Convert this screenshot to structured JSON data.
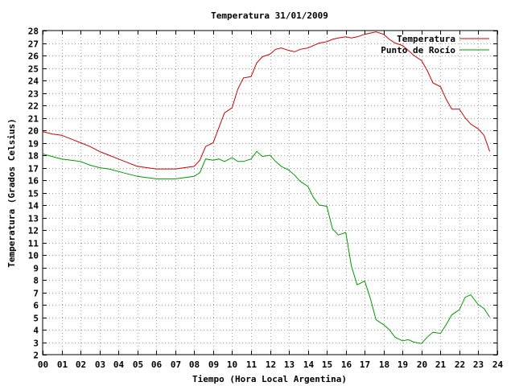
{
  "chart_data": {
    "type": "line",
    "title": "Temperatura 31/01/2009",
    "xlabel": "Tiempo (Hora Local Argentina)",
    "ylabel": "Temperatura (Grados Celsius)",
    "xlim": [
      0,
      24
    ],
    "ylim": [
      2,
      28
    ],
    "x_ticks": [
      "00",
      "01",
      "02",
      "03",
      "04",
      "05",
      "06",
      "07",
      "08",
      "09",
      "10",
      "11",
      "12",
      "13",
      "14",
      "15",
      "16",
      "17",
      "18",
      "19",
      "20",
      "21",
      "22",
      "23",
      "24"
    ],
    "y_ticks": [
      "2",
      "3",
      "4",
      "5",
      "6",
      "7",
      "8",
      "9",
      "10",
      "11",
      "12",
      "13",
      "14",
      "15",
      "16",
      "17",
      "18",
      "19",
      "20",
      "21",
      "22",
      "23",
      "24",
      "25",
      "26",
      "27",
      "28"
    ],
    "grid": true,
    "legend_position": "top-right",
    "series": [
      {
        "name": "Temperatura",
        "color": "#cc0000",
        "x": [
          0.0,
          0.5,
          1.0,
          1.5,
          2.0,
          2.5,
          3.0,
          3.5,
          4.0,
          4.5,
          5.0,
          5.5,
          6.0,
          6.5,
          7.0,
          7.5,
          8.0,
          8.3,
          8.6,
          9.0,
          9.3,
          9.6,
          10.0,
          10.3,
          10.6,
          11.0,
          11.3,
          11.6,
          12.0,
          12.3,
          12.6,
          13.0,
          13.3,
          13.6,
          14.0,
          14.3,
          14.6,
          15.0,
          15.3,
          15.6,
          16.0,
          16.3,
          16.6,
          17.0,
          17.3,
          17.6,
          18.0,
          18.3,
          18.6,
          19.0,
          19.3,
          19.6,
          20.0,
          20.3,
          20.6,
          21.0,
          21.3,
          21.6,
          22.0,
          22.3,
          22.6,
          23.0,
          23.3,
          23.6
        ],
        "y": [
          19.9,
          19.7,
          19.6,
          19.3,
          19.0,
          18.7,
          18.3,
          18.0,
          17.7,
          17.4,
          17.1,
          17.0,
          16.9,
          16.9,
          16.9,
          17.0,
          17.1,
          17.6,
          18.7,
          19.0,
          20.2,
          21.4,
          21.8,
          23.3,
          24.2,
          24.3,
          25.4,
          25.9,
          26.1,
          26.5,
          26.6,
          26.4,
          26.3,
          26.5,
          26.6,
          26.8,
          27.0,
          27.1,
          27.3,
          27.4,
          27.5,
          27.4,
          27.5,
          27.7,
          27.8,
          27.9,
          27.7,
          27.3,
          27.0,
          26.8,
          26.4,
          26.0,
          25.6,
          24.8,
          23.8,
          23.5,
          22.5,
          21.7,
          21.7,
          21.0,
          20.5,
          20.1,
          19.6,
          18.3
        ]
      },
      {
        "name": "Punto de Rocío",
        "color": "#009900",
        "x": [
          0.0,
          0.5,
          1.0,
          1.5,
          2.0,
          2.5,
          3.0,
          3.5,
          4.0,
          4.5,
          5.0,
          5.5,
          6.0,
          6.5,
          7.0,
          7.5,
          8.0,
          8.3,
          8.6,
          9.0,
          9.3,
          9.6,
          10.0,
          10.3,
          10.6,
          11.0,
          11.3,
          11.6,
          12.0,
          12.3,
          12.6,
          13.0,
          13.3,
          13.6,
          14.0,
          14.3,
          14.6,
          15.0,
          15.3,
          15.6,
          16.0,
          16.3,
          16.6,
          17.0,
          17.3,
          17.6,
          18.0,
          18.3,
          18.6,
          19.0,
          19.3,
          19.6,
          20.0,
          20.3,
          20.6,
          21.0,
          21.3,
          21.6,
          22.0,
          22.3,
          22.6,
          23.0,
          23.3,
          23.6
        ],
        "y": [
          18.1,
          17.9,
          17.7,
          17.6,
          17.5,
          17.2,
          17.0,
          16.9,
          16.7,
          16.5,
          16.3,
          16.2,
          16.1,
          16.1,
          16.1,
          16.2,
          16.3,
          16.6,
          17.7,
          17.6,
          17.7,
          17.5,
          17.8,
          17.5,
          17.5,
          17.7,
          18.3,
          17.9,
          18.0,
          17.5,
          17.1,
          16.8,
          16.4,
          15.9,
          15.5,
          14.6,
          14.0,
          13.9,
          12.1,
          11.6,
          11.8,
          9.1,
          7.6,
          7.9,
          6.5,
          4.8,
          4.4,
          4.0,
          3.4,
          3.1,
          3.2,
          3.0,
          2.9,
          3.4,
          3.8,
          3.7,
          4.4,
          5.2,
          5.6,
          6.6,
          6.8,
          6.0,
          5.7,
          5.0
        ]
      }
    ]
  }
}
